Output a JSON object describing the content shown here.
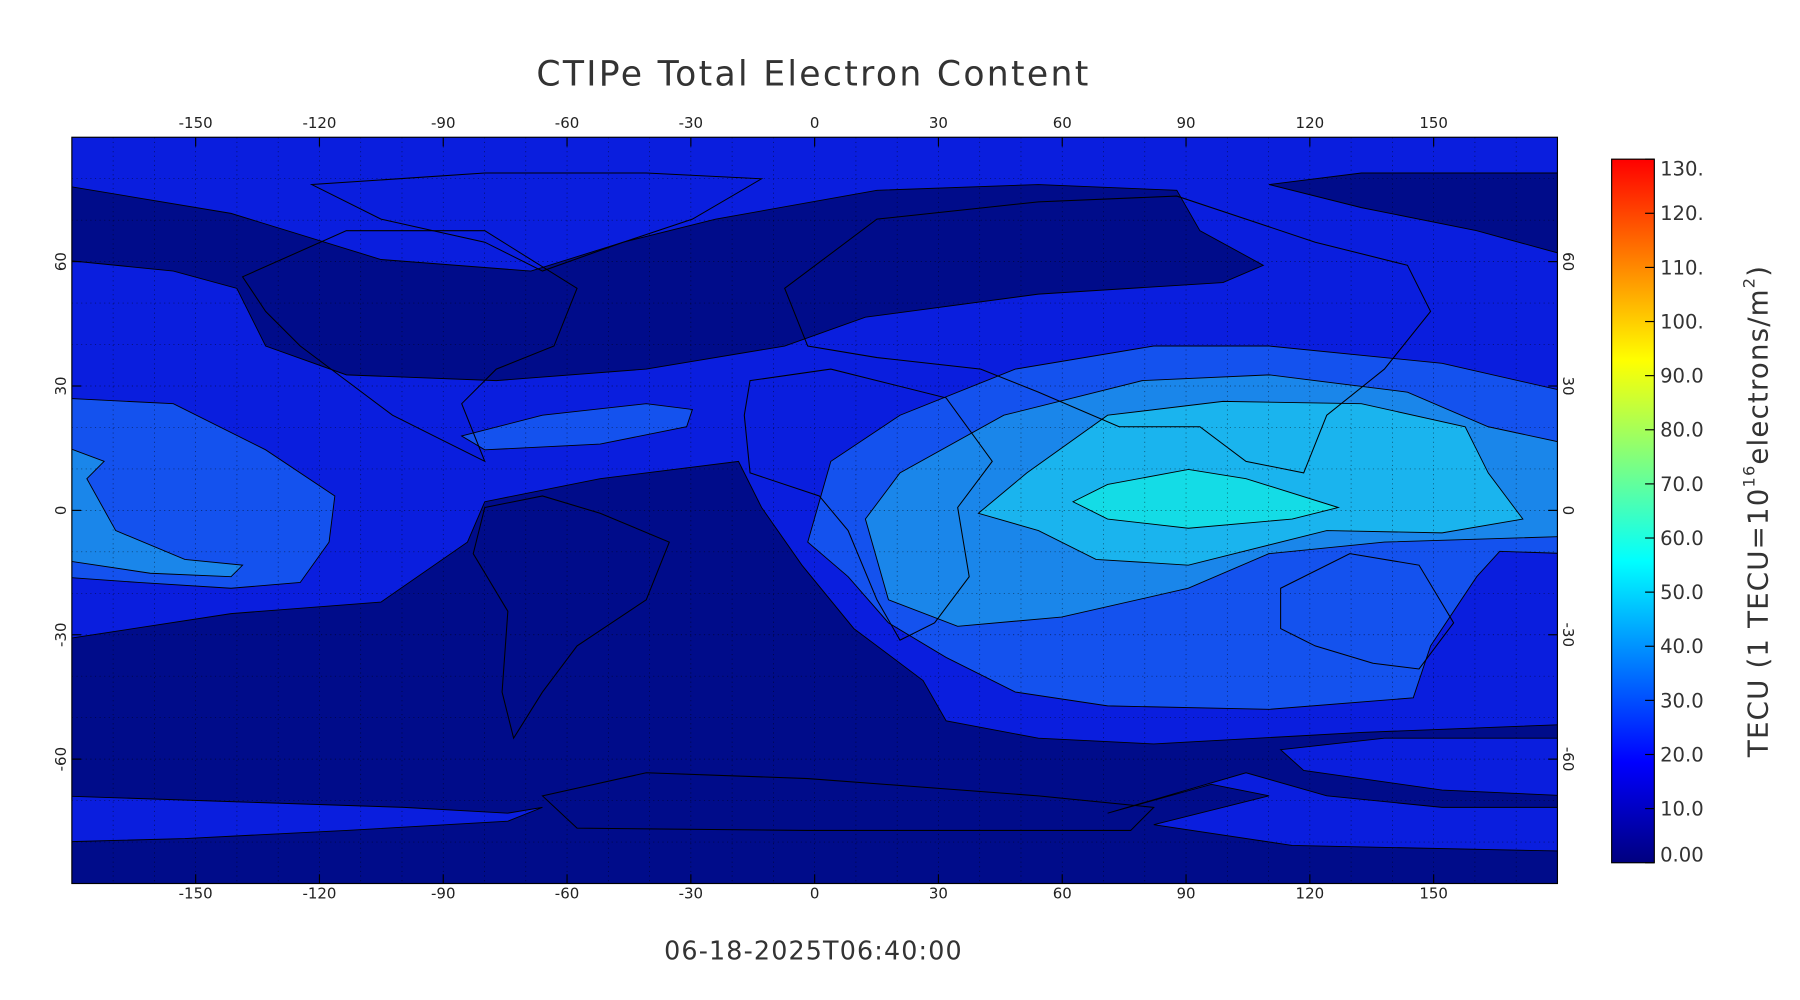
{
  "chart_data": {
    "type": "contour",
    "title": "CTIPe Total Electron Content",
    "timestamp": "06-18-2025T06:40:00",
    "xlim": [
      -180,
      180
    ],
    "ylim": [
      -90,
      90
    ],
    "xticks": [
      -150,
      -120,
      -90,
      -60,
      -30,
      0,
      30,
      60,
      90,
      120,
      150
    ],
    "yticks": [
      -60,
      -30,
      0,
      30,
      60
    ],
    "grid": true,
    "levels": [
      0,
      10,
      20,
      30,
      40,
      50
    ],
    "level_colors": [
      "#000c8a",
      "#0a1ede",
      "#1452ee",
      "#1a86ea",
      "#1ab4ee",
      "#14dce6"
    ],
    "colorbar": {
      "lim": [
        0,
        130
      ],
      "ticks": [
        {
          "value": 130,
          "label": "130."
        },
        {
          "value": 120,
          "label": "120."
        },
        {
          "value": 110,
          "label": "110."
        },
        {
          "value": 100,
          "label": "100."
        },
        {
          "value": 90,
          "label": "90.0"
        },
        {
          "value": 80,
          "label": "80.0"
        },
        {
          "value": 70,
          "label": "70.0"
        },
        {
          "value": 60,
          "label": "60.0"
        },
        {
          "value": 50,
          "label": "50.0"
        },
        {
          "value": 40,
          "label": "40.0"
        },
        {
          "value": 30,
          "label": "30.0"
        },
        {
          "value": 20,
          "label": "20.0"
        },
        {
          "value": 10,
          "label": "10.0"
        },
        {
          "value": 0,
          "label": "0.00"
        }
      ],
      "label": [
        "TECU (1 TECU=10",
        "16",
        "electrons/m",
        "2",
        ")"
      ],
      "colors": [
        "#00007f",
        "#0000ff",
        "#007fff",
        "#00ffff",
        "#7fff7f",
        "#ffff00",
        "#ff7f00",
        "#ff0000"
      ]
    }
  }
}
